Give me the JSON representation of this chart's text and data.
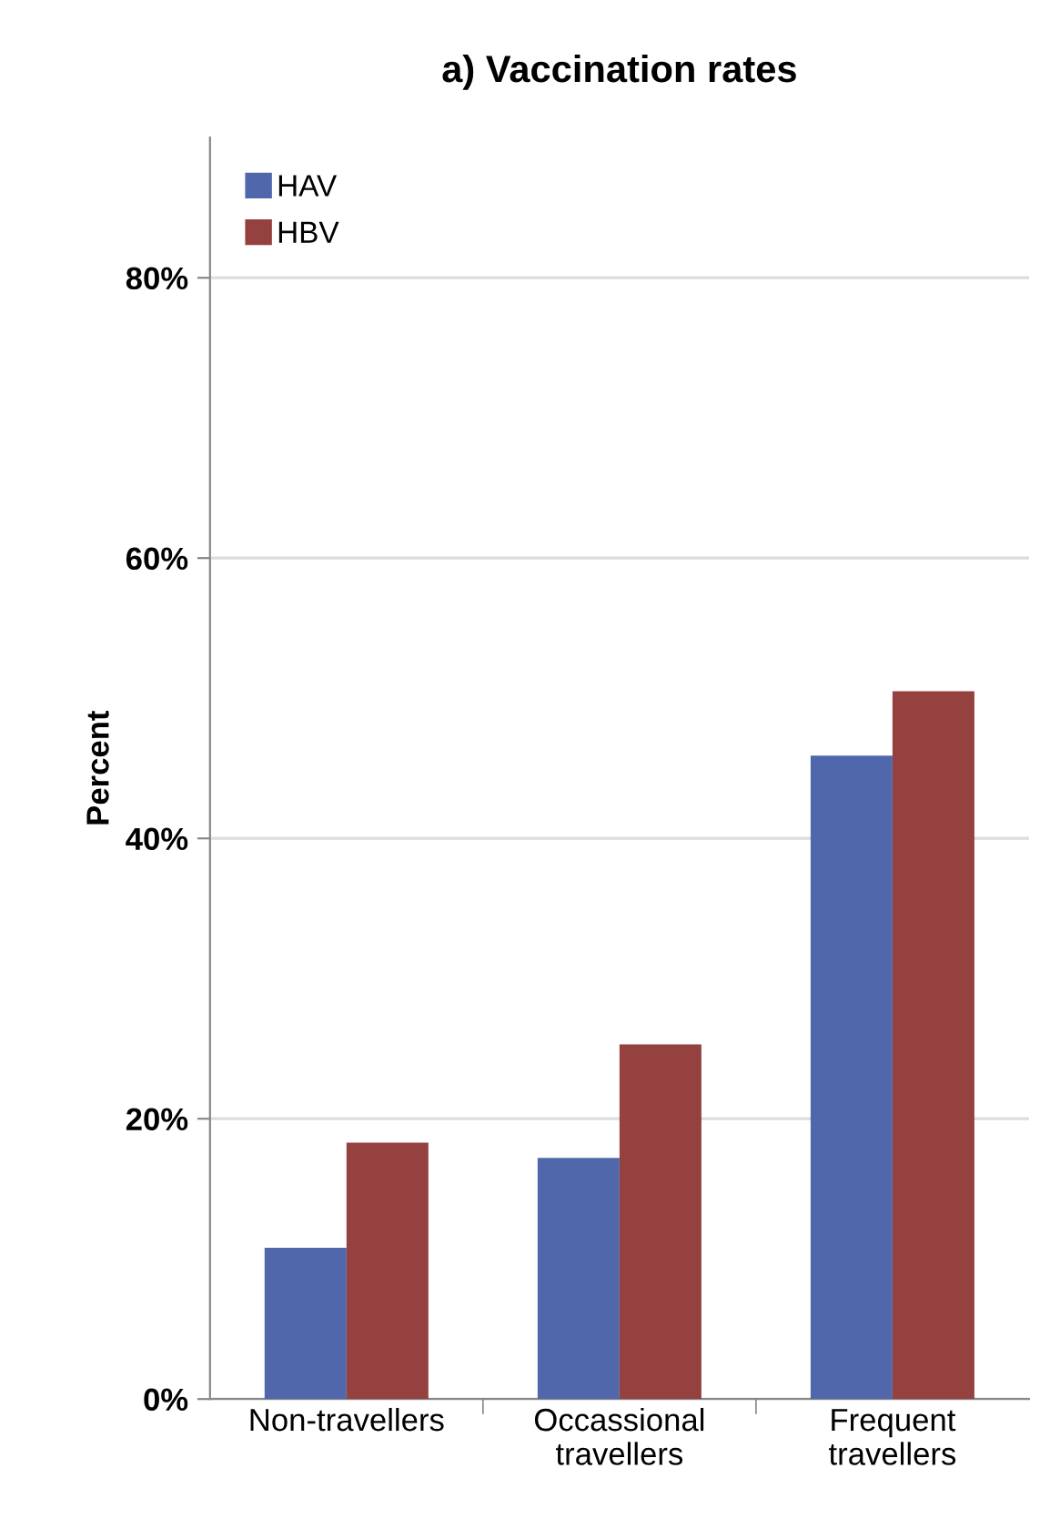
{
  "chart_data": {
    "type": "bar",
    "title": "a) Vaccination rates",
    "ylabel": "Percent",
    "categories": [
      "Non-travellers",
      "Occassional\ntravellers",
      "Frequent\ntravellers"
    ],
    "series": [
      {
        "name": "HAV",
        "color": "#5068ab",
        "values": [
          10.8,
          17.2,
          45.9
        ]
      },
      {
        "name": "HBV",
        "color": "#954140",
        "values": [
          18.3,
          25.3,
          50.5
        ]
      }
    ],
    "ylim": [
      0,
      90
    ],
    "yticks": [
      {
        "value": 0,
        "label": "0%"
      },
      {
        "value": 20,
        "label": "20%"
      },
      {
        "value": 40,
        "label": "40%"
      },
      {
        "value": 60,
        "label": "60%"
      },
      {
        "value": 80,
        "label": "80%"
      }
    ],
    "grid": "y",
    "legend": "top left"
  }
}
